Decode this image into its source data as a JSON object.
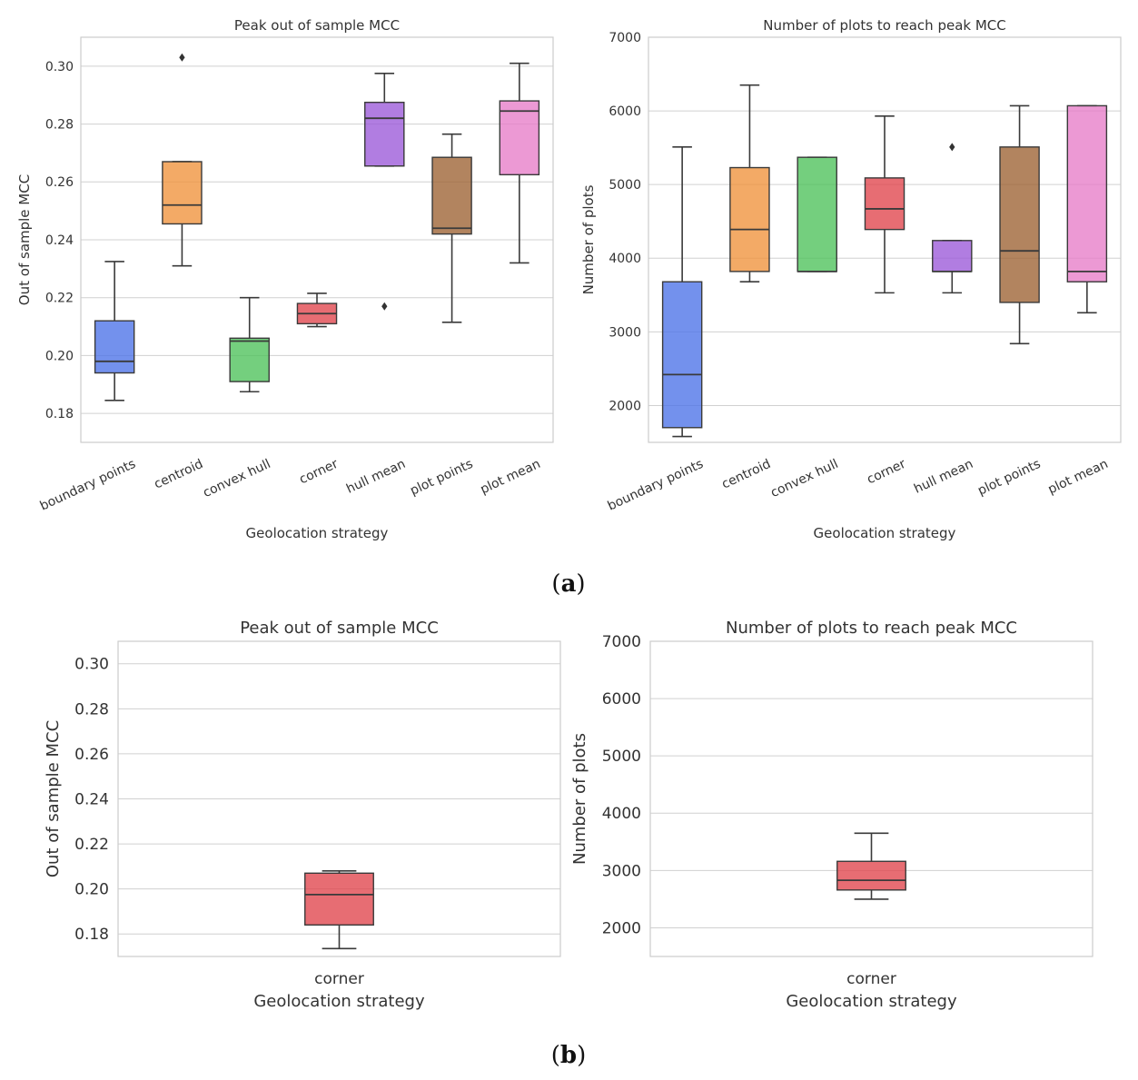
{
  "chart_data": [
    {
      "type": "box",
      "title": "Peak out of sample MCC",
      "xlabel": "Geolocation strategy",
      "ylabel": "Out of sample MCC",
      "ylim": [
        0.17,
        0.31
      ],
      "yticks": [
        "0.18",
        "0.20",
        "0.22",
        "0.24",
        "0.26",
        "0.28",
        "0.30"
      ],
      "categories": [
        "boundary points",
        "centroid",
        "convex hull",
        "corner",
        "hull mean",
        "plot points",
        "plot mean"
      ],
      "boxes": [
        {
          "name": "boundary points",
          "color": "#4c72e8",
          "whisker_low": 0.1845,
          "q1": 0.194,
          "median": 0.198,
          "q3": 0.212,
          "whisker_high": 0.2325,
          "outliers": []
        },
        {
          "name": "centroid",
          "color": "#f0923b",
          "whisker_low": 0.231,
          "q1": 0.2455,
          "median": 0.252,
          "q3": 0.267,
          "whisker_high": 0.267,
          "outliers": [
            0.303
          ]
        },
        {
          "name": "convex hull",
          "color": "#4dc25a",
          "whisker_low": 0.1875,
          "q1": 0.191,
          "median": 0.205,
          "q3": 0.206,
          "whisker_high": 0.22,
          "outliers": []
        },
        {
          "name": "corner",
          "color": "#e0444c",
          "whisker_low": 0.21,
          "q1": 0.211,
          "median": 0.2145,
          "q3": 0.218,
          "whisker_high": 0.2215,
          "outliers": []
        },
        {
          "name": "hull mean",
          "color": "#9b59d9",
          "whisker_low": 0.2655,
          "q1": 0.2655,
          "median": 0.282,
          "q3": 0.2875,
          "whisker_high": 0.2975,
          "outliers": [
            0.217
          ]
        },
        {
          "name": "plot points",
          "color": "#9c6232",
          "whisker_low": 0.2115,
          "q1": 0.242,
          "median": 0.244,
          "q3": 0.2685,
          "whisker_high": 0.2765,
          "outliers": []
        },
        {
          "name": "plot mean",
          "color": "#e77cc8",
          "whisker_low": 0.232,
          "q1": 0.2625,
          "median": 0.2845,
          "q3": 0.288,
          "whisker_high": 0.301,
          "outliers": []
        }
      ]
    },
    {
      "type": "box",
      "title": "Number of plots to reach peak MCC",
      "xlabel": "Geolocation strategy",
      "ylabel": "Number of plots",
      "ylim": [
        1500,
        7000
      ],
      "yticks": [
        "2000",
        "3000",
        "4000",
        "5000",
        "6000",
        "7000"
      ],
      "categories": [
        "boundary points",
        "centroid",
        "convex hull",
        "corner",
        "hull mean",
        "plot points",
        "plot mean"
      ],
      "boxes": [
        {
          "name": "boundary points",
          "color": "#4c72e8",
          "whisker_low": 1580,
          "q1": 1700,
          "median": 2420,
          "q3": 3680,
          "whisker_high": 5510,
          "outliers": []
        },
        {
          "name": "centroid",
          "color": "#f0923b",
          "whisker_low": 3680,
          "q1": 3820,
          "median": 4390,
          "q3": 5230,
          "whisker_high": 6350,
          "outliers": []
        },
        {
          "name": "convex hull",
          "color": "#4dc25a",
          "whisker_low": 3820,
          "q1": 3820,
          "median": 3820,
          "q3": 5370,
          "whisker_high": 5370,
          "outliers": []
        },
        {
          "name": "corner",
          "color": "#e0444c",
          "whisker_low": 3530,
          "q1": 4390,
          "median": 4670,
          "q3": 5090,
          "whisker_high": 5930,
          "outliers": []
        },
        {
          "name": "hull mean",
          "color": "#9b59d9",
          "whisker_low": 3530,
          "q1": 3820,
          "median": 3820,
          "q3": 4240,
          "whisker_high": 4240,
          "outliers": [
            5510
          ]
        },
        {
          "name": "plot points",
          "color": "#9c6232",
          "whisker_low": 2840,
          "q1": 3400,
          "median": 4100,
          "q3": 5510,
          "whisker_high": 6070,
          "outliers": []
        },
        {
          "name": "plot mean",
          "color": "#e77cc8",
          "whisker_low": 3260,
          "q1": 3680,
          "median": 3820,
          "q3": 6070,
          "whisker_high": 6070,
          "outliers": []
        }
      ]
    },
    {
      "type": "box",
      "title": "Peak out of sample MCC",
      "xlabel": "Geolocation strategy",
      "ylabel": "Out of sample MCC",
      "ylim": [
        0.17,
        0.31
      ],
      "yticks": [
        "0.18",
        "0.20",
        "0.22",
        "0.24",
        "0.26",
        "0.28",
        "0.30"
      ],
      "categories": [
        "corner"
      ],
      "boxes": [
        {
          "name": "corner",
          "color": "#e0444c",
          "whisker_low": 0.1735,
          "q1": 0.184,
          "median": 0.1975,
          "q3": 0.207,
          "whisker_high": 0.208,
          "outliers": []
        }
      ]
    },
    {
      "type": "box",
      "title": "Number of plots to reach peak MCC",
      "xlabel": "Geolocation strategy",
      "ylabel": "Number of plots",
      "ylim": [
        1500,
        7000
      ],
      "yticks": [
        "2000",
        "3000",
        "4000",
        "5000",
        "6000",
        "7000"
      ],
      "categories": [
        "corner"
      ],
      "boxes": [
        {
          "name": "corner",
          "color": "#e0444c",
          "whisker_low": 2500,
          "q1": 2660,
          "median": 2830,
          "q3": 3160,
          "whisker_high": 3650,
          "outliers": []
        }
      ]
    }
  ],
  "captions": {
    "a": {
      "open": "(",
      "letter": "a",
      "close": ")"
    },
    "b": {
      "open": "(",
      "letter": "b",
      "close": ")"
    }
  }
}
